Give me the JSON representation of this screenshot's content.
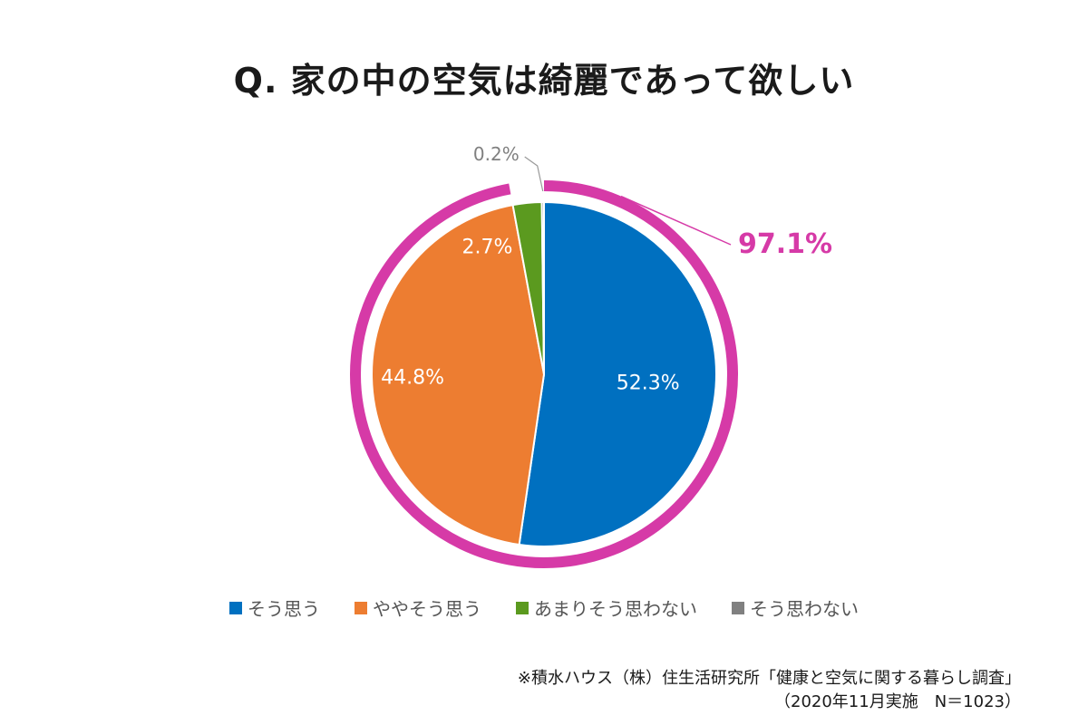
{
  "chart_data": {
    "type": "pie",
    "title": "Q. 家の中の空気は綺麗であって欲しい",
    "slices": [
      {
        "label": "そう思う",
        "value": 52.3,
        "value_label": "52.3%",
        "color": "#0070c0"
      },
      {
        "label": "ややそう思う",
        "value": 44.8,
        "value_label": "44.8%",
        "color": "#ed7d31"
      },
      {
        "label": "あまりそう思わない",
        "value": 2.7,
        "value_label": "2.7%",
        "color": "#5b9a1f"
      },
      {
        "label": "そう思わない",
        "value": 0.2,
        "value_label": "0.2%",
        "color": "#808080"
      }
    ],
    "highlight": {
      "label": "97.1%",
      "color": "#d63aa7",
      "covers": [
        "そう思う",
        "ややそう思う"
      ]
    },
    "legend_position": "bottom"
  },
  "source": {
    "line1": "※積水ハウス（株）住生活研究所「健康と空気に関する暮らし調査」",
    "line2": "（2020年11月実施　N＝1023）"
  }
}
